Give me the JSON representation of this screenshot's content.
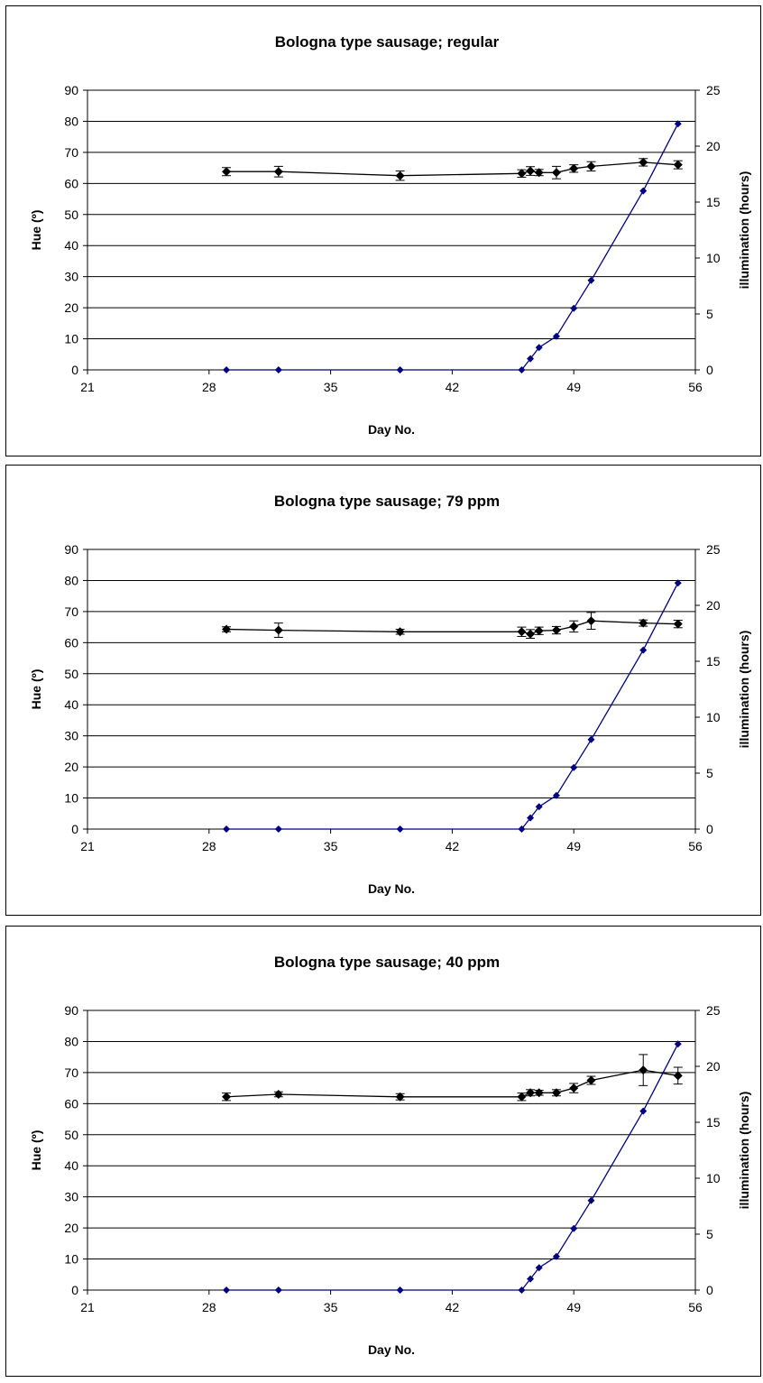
{
  "chart_data": [
    {
      "type": "line",
      "title": "Bologna type sausage; regular",
      "xlabel": "Day No.",
      "ylabel": "Hue (º)",
      "y2label": "illumination (hours)",
      "xlim": [
        21,
        56
      ],
      "ylim": [
        0,
        90
      ],
      "y2lim": [
        0,
        25
      ],
      "xticks": [
        "21",
        "28",
        "35",
        "42",
        "49",
        "56"
      ],
      "yticks": [
        "0",
        "10",
        "20",
        "30",
        "40",
        "50",
        "60",
        "70",
        "80",
        "90"
      ],
      "y2ticks": [
        "0",
        "5",
        "10",
        "15",
        "20",
        "25"
      ],
      "grid": true,
      "series": [
        {
          "axis": "left",
          "color": "#000000",
          "marker": "diamond",
          "x": [
            29,
            32,
            39,
            46,
            46.5,
            47,
            48,
            49,
            50,
            53,
            55
          ],
          "y": [
            63.8,
            63.8,
            62.5,
            63.2,
            64.0,
            63.5,
            63.5,
            64.8,
            65.5,
            66.8,
            66.0
          ],
          "err": [
            1.3,
            1.7,
            1.5,
            1.2,
            1.4,
            1.0,
            2.0,
            1.2,
            1.5,
            1.2,
            1.3
          ]
        },
        {
          "axis": "right",
          "color": "#000080",
          "marker": "diamond",
          "x": [
            29,
            32,
            39,
            46,
            46.5,
            47,
            48,
            49,
            50,
            53,
            55
          ],
          "y": [
            0,
            0,
            0,
            0,
            1,
            2,
            3,
            5.5,
            8,
            16,
            22
          ]
        }
      ]
    },
    {
      "type": "line",
      "title": "Bologna type sausage; 79 ppm",
      "xlabel": "Day No.",
      "ylabel": "Hue (º)",
      "y2label": "illumination (hours)",
      "xlim": [
        21,
        56
      ],
      "ylim": [
        0,
        90
      ],
      "y2lim": [
        0,
        25
      ],
      "xticks": [
        "21",
        "28",
        "35",
        "42",
        "49",
        "56"
      ],
      "yticks": [
        "0",
        "10",
        "20",
        "30",
        "40",
        "50",
        "60",
        "70",
        "80",
        "90"
      ],
      "y2ticks": [
        "0",
        "5",
        "10",
        "15",
        "20",
        "25"
      ],
      "grid": true,
      "series": [
        {
          "axis": "left",
          "color": "#000000",
          "marker": "diamond",
          "x": [
            29,
            32,
            39,
            46,
            46.5,
            47,
            48,
            49,
            50,
            53,
            55
          ],
          "y": [
            64.3,
            64.0,
            63.5,
            63.5,
            62.8,
            63.8,
            64.0,
            65.2,
            67.0,
            66.3,
            66.0
          ],
          "err": [
            0.8,
            2.3,
            0.8,
            1.5,
            1.4,
            1.2,
            1.2,
            1.8,
            2.7,
            1.0,
            1.2
          ]
        },
        {
          "axis": "right",
          "color": "#000080",
          "marker": "diamond",
          "x": [
            29,
            32,
            39,
            46,
            46.5,
            47,
            48,
            49,
            50,
            53,
            55
          ],
          "y": [
            0,
            0,
            0,
            0,
            1,
            2,
            3,
            5.5,
            8,
            16,
            22
          ]
        }
      ]
    },
    {
      "type": "line",
      "title": "Bologna type sausage; 40 ppm",
      "xlabel": "Day No.",
      "ylabel": "Hue (º)",
      "y2label": "illumination (hours)",
      "xlim": [
        21,
        56
      ],
      "ylim": [
        0,
        90
      ],
      "y2lim": [
        0,
        25
      ],
      "xticks": [
        "21",
        "28",
        "35",
        "42",
        "49",
        "56"
      ],
      "yticks": [
        "0",
        "10",
        "20",
        "30",
        "40",
        "50",
        "60",
        "70",
        "80",
        "90"
      ],
      "y2ticks": [
        "0",
        "5",
        "10",
        "15",
        "20",
        "25"
      ],
      "grid": true,
      "series": [
        {
          "axis": "left",
          "color": "#000000",
          "marker": "diamond",
          "x": [
            29,
            32,
            39,
            46,
            46.5,
            47,
            48,
            49,
            50,
            53,
            55
          ],
          "y": [
            62.2,
            63.0,
            62.2,
            62.2,
            63.5,
            63.5,
            63.5,
            65.0,
            67.5,
            70.8,
            69.0
          ],
          "err": [
            1.2,
            0.8,
            1.0,
            1.2,
            1.0,
            0.8,
            1.0,
            1.5,
            1.3,
            5.0,
            2.7
          ]
        },
        {
          "axis": "right",
          "color": "#000080",
          "marker": "diamond",
          "x": [
            29,
            32,
            39,
            46,
            46.5,
            47,
            48,
            49,
            50,
            53,
            55
          ],
          "y": [
            0,
            0,
            0,
            0,
            1,
            2,
            3,
            5.5,
            8,
            16,
            22
          ]
        }
      ]
    }
  ]
}
